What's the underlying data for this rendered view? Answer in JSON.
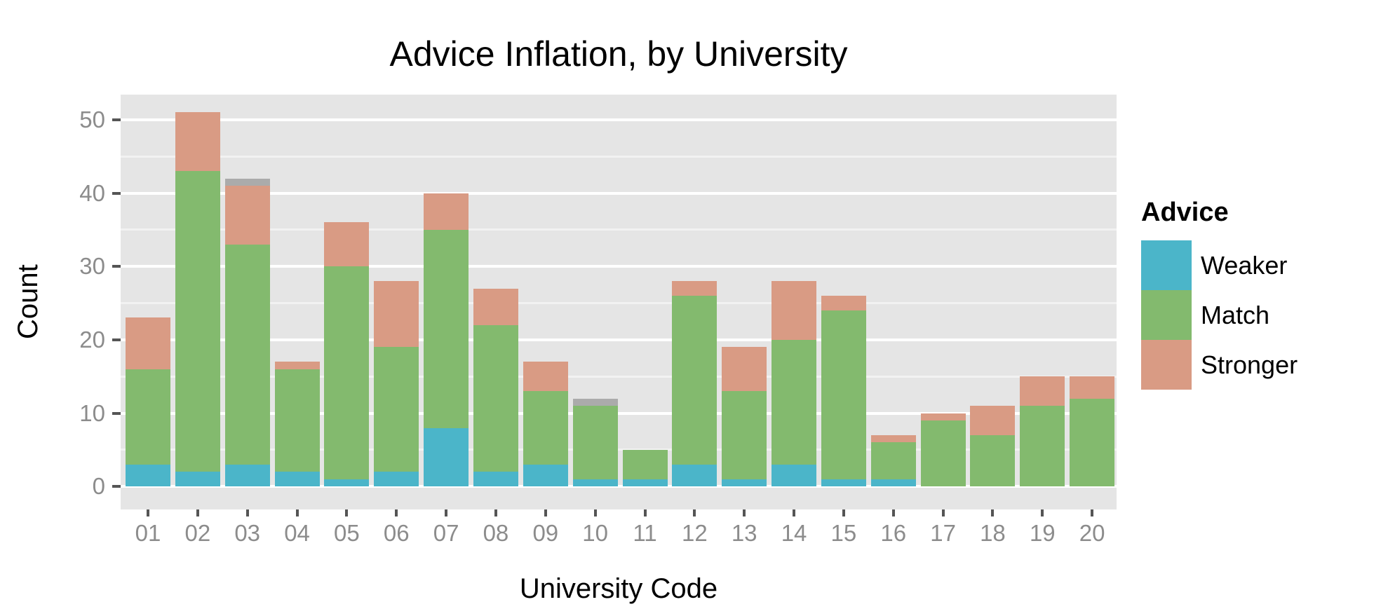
{
  "title": "Advice Inflation, by University",
  "y_axis": {
    "label": "Count",
    "tick_labels": [
      "0",
      "10",
      "20",
      "30",
      "40",
      "50"
    ]
  },
  "x_axis": {
    "label": "University Code"
  },
  "legend": {
    "title": "Advice",
    "entries": [
      {
        "label": "Weaker",
        "color": "#4bb5c9"
      },
      {
        "label": "Match",
        "color": "#83ba6e"
      },
      {
        "label": "Stronger",
        "color": "#d99b84"
      }
    ]
  },
  "colors": {
    "panel_background": "#e5e5e5",
    "major_gridline": "#ffffff",
    "minor_gridline": "#f2f2f2",
    "tick_mark": "#555555",
    "tick_label_text": "#8c8c8c",
    "title_text": "#000000",
    "na_segment": "#ababab"
  },
  "chart_data": {
    "type": "bar",
    "stacked": true,
    "title": "Advice Inflation, by University",
    "xlabel": "University Code",
    "ylabel": "Count",
    "ylim": [
      0,
      51
    ],
    "y_major_ticks": [
      0,
      10,
      20,
      30,
      40,
      50
    ],
    "y_minor_gridlines": [
      5,
      15,
      25,
      35,
      45
    ],
    "grid": true,
    "legend_position": "right",
    "categories": [
      "01",
      "02",
      "03",
      "04",
      "05",
      "06",
      "07",
      "08",
      "09",
      "10",
      "11",
      "12",
      "13",
      "14",
      "15",
      "16",
      "17",
      "18",
      "19",
      "20"
    ],
    "series": [
      {
        "name": "Weaker",
        "color": "#4bb5c9",
        "values": [
          3,
          2,
          3,
          2,
          1,
          2,
          8,
          2,
          3,
          1,
          1,
          3,
          1,
          3,
          1,
          1,
          0,
          0,
          0,
          0
        ]
      },
      {
        "name": "Match",
        "color": "#83ba6e",
        "values": [
          13,
          41,
          30,
          14,
          29,
          17,
          27,
          20,
          10,
          10,
          4,
          23,
          12,
          17,
          23,
          5,
          9,
          7,
          11,
          12
        ]
      },
      {
        "name": "Stronger",
        "color": "#d99b84",
        "values": [
          7,
          8,
          8,
          1,
          6,
          9,
          5,
          5,
          4,
          0,
          0,
          2,
          6,
          8,
          2,
          1,
          1,
          4,
          4,
          3
        ]
      },
      {
        "name": "NA",
        "color": "#ababab",
        "values": [
          0,
          0,
          1,
          0,
          0,
          0,
          0,
          0,
          0,
          1,
          0,
          0,
          0,
          0,
          0,
          0,
          0,
          0,
          0,
          0
        ]
      }
    ],
    "totals": [
      23,
      51,
      42,
      17,
      36,
      28,
      40,
      27,
      17,
      12,
      5,
      28,
      19,
      28,
      26,
      7,
      10,
      11,
      15,
      15
    ]
  }
}
